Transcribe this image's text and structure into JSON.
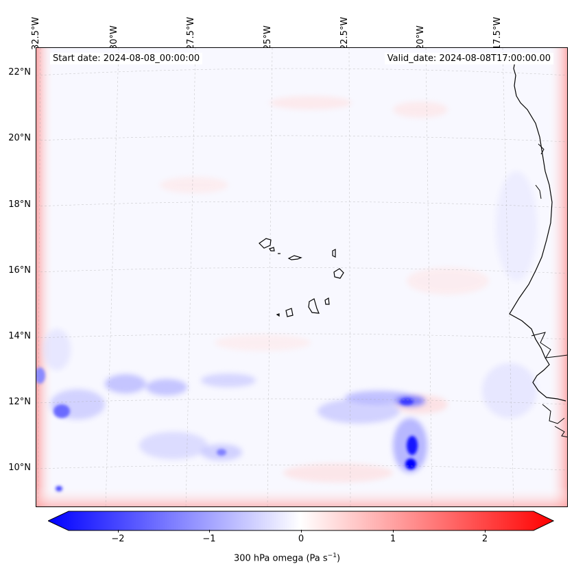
{
  "map": {
    "start_date": "Start date: 2024-08-08_00:00:00",
    "valid_date": "Valid_date: 2024-08-08T17:00:00.00",
    "lon_labels": [
      "32.5°W",
      "30°W",
      "27.5°W",
      "25°W",
      "22.5°W",
      "20°W",
      "17.5°W"
    ],
    "lat_labels": [
      "22°N",
      "20°N",
      "18°N",
      "16°N",
      "14°N",
      "12°N",
      "10°N"
    ]
  },
  "colorbar": {
    "ticks": [
      "−2",
      "−1",
      "0",
      "1",
      "2"
    ],
    "label_main": "300 hPa omega (Pa s",
    "label_sup": "−1",
    "label_end": ")",
    "colors": {
      "negative": "#0000ff",
      "zero": "#ffffff",
      "positive": "#ff0000"
    }
  }
}
